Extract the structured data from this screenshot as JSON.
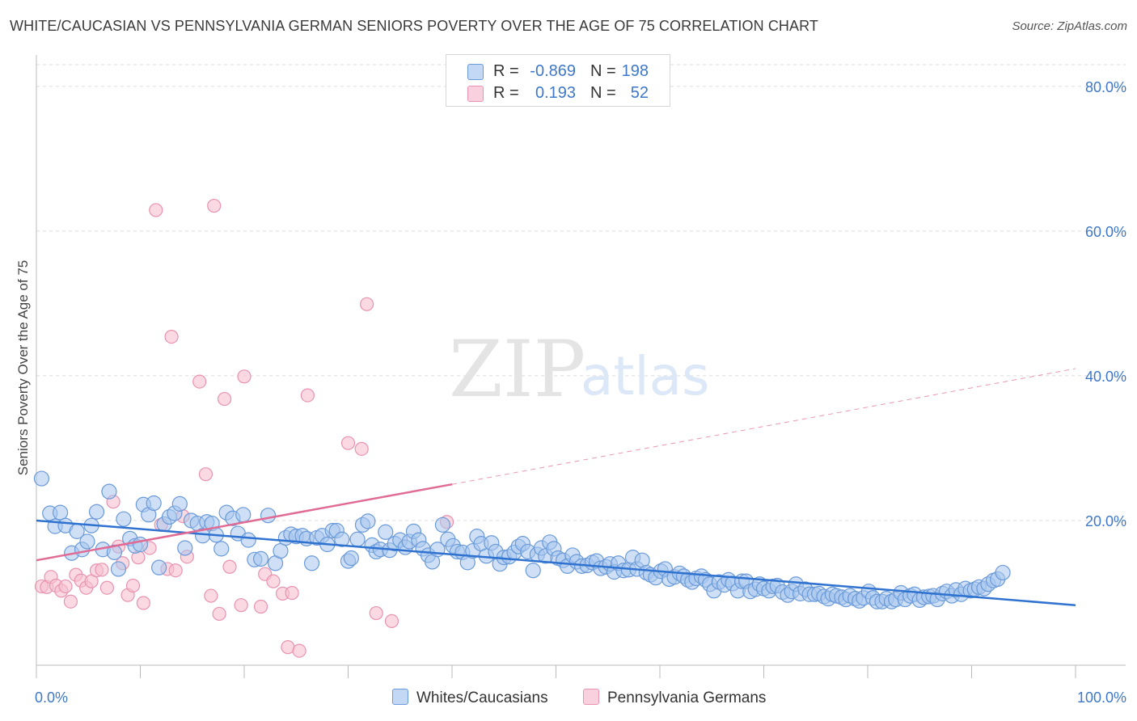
{
  "title": "WHITE/CAUCASIAN VS PENNSYLVANIA GERMAN SENIORS POVERTY OVER THE AGE OF 75 CORRELATION CHART",
  "source": "Source: ZipAtlas.com",
  "watermark": {
    "zip": "ZIP",
    "atlas": "atlas"
  },
  "colors": {
    "blue_fill": "#a8c6ef",
    "blue_stroke": "#6a9ad8",
    "blue_line": "#2f72cf",
    "pink_fill": "#f6bfd0",
    "pink_stroke": "#e893b0",
    "pink_line": "#e06b95",
    "tick_label": "#3f78c8",
    "grid": "#dcdcdc"
  },
  "legend": {
    "rows": [
      {
        "r_label": "R =",
        "r_value": "-0.869",
        "n_label": "N =",
        "n_value": "198"
      },
      {
        "r_label": "R =",
        "r_value": "0.193",
        "n_label": "N =",
        "n_value": "52"
      }
    ]
  },
  "bottom_legend": {
    "blue": "Whites/Caucasians",
    "pink": "Pennsylvania Germans"
  },
  "chart_data": {
    "type": "scatter",
    "title": "WHITE/CAUCASIAN VS PENNSYLVANIA GERMAN SENIORS POVERTY OVER THE AGE OF 75 CORRELATION CHART",
    "xlabel": "",
    "ylabel": "Seniors Poverty Over the Age of 75",
    "xlim": [
      0,
      100
    ],
    "ylim": [
      0,
      83
    ],
    "x_tick_labels": [
      "0.0%",
      "100.0%"
    ],
    "y_ticks": [
      20,
      40,
      60,
      80
    ],
    "y_tick_labels": [
      "20.0%",
      "40.0%",
      "60.0%",
      "80.0%"
    ],
    "grid": true,
    "legend_position": "top-center",
    "series": [
      {
        "name": "Whites/Caucasians",
        "r": -0.869,
        "n": 198,
        "trend": {
          "x": [
            0,
            100
          ],
          "y": [
            20.0,
            8.3
          ]
        },
        "points": [
          [
            0.5,
            25.8
          ],
          [
            1.3,
            21
          ],
          [
            1.8,
            19.2
          ],
          [
            2.3,
            21.1
          ],
          [
            2.8,
            19.3
          ],
          [
            3.4,
            15.5
          ],
          [
            3.9,
            18.5
          ],
          [
            4.4,
            16
          ],
          [
            4.9,
            17.1
          ],
          [
            5.3,
            19.3
          ],
          [
            5.8,
            21.2
          ],
          [
            6.4,
            16
          ],
          [
            7,
            24
          ],
          [
            7.5,
            15.6
          ],
          [
            7.9,
            13.3
          ],
          [
            8.4,
            20.2
          ],
          [
            9,
            17.5
          ],
          [
            9.5,
            16.5
          ],
          [
            10,
            16.7
          ],
          [
            10.3,
            22.2
          ],
          [
            10.8,
            20.8
          ],
          [
            11.3,
            22.4
          ],
          [
            11.8,
            13.5
          ],
          [
            12.3,
            19.5
          ],
          [
            12.8,
            20.5
          ],
          [
            13.3,
            21
          ],
          [
            13.8,
            22.3
          ],
          [
            14.3,
            16.2
          ],
          [
            14.9,
            20
          ],
          [
            15.5,
            19.6
          ],
          [
            16,
            17.9
          ],
          [
            16.4,
            19.8
          ],
          [
            16.9,
            19.6
          ],
          [
            17.3,
            18
          ],
          [
            17.8,
            16.1
          ],
          [
            18.3,
            21.1
          ],
          [
            18.9,
            20.3
          ],
          [
            19.4,
            18.2
          ],
          [
            19.9,
            20.8
          ],
          [
            20.4,
            17.3
          ],
          [
            21,
            14.6
          ],
          [
            21.6,
            14.7
          ],
          [
            22.3,
            20.7
          ],
          [
            23,
            14.1
          ],
          [
            23.5,
            15.8
          ],
          [
            24,
            17.6
          ],
          [
            24.5,
            18.1
          ],
          [
            25,
            17.8
          ],
          [
            25.6,
            17.9
          ],
          [
            26,
            17.5
          ],
          [
            26.5,
            14.1
          ],
          [
            27,
            17.6
          ],
          [
            27.5,
            17.9
          ],
          [
            28,
            16.7
          ],
          [
            28.5,
            18.6
          ],
          [
            28.9,
            18.6
          ],
          [
            29.4,
            17.4
          ],
          [
            30,
            14.4
          ],
          [
            30.3,
            14.8
          ],
          [
            30.9,
            17.4
          ],
          [
            31.4,
            19.4
          ],
          [
            31.9,
            19.9
          ],
          [
            32.3,
            16.6
          ],
          [
            32.7,
            15.7
          ],
          [
            33.1,
            16
          ],
          [
            33.6,
            18.4
          ],
          [
            34,
            15.9
          ],
          [
            34.5,
            16.8
          ],
          [
            35,
            17.3
          ],
          [
            35.5,
            16.3
          ],
          [
            35.9,
            17.1
          ],
          [
            36.3,
            18.5
          ],
          [
            36.8,
            17.3
          ],
          [
            37.2,
            16.1
          ],
          [
            37.7,
            15.2
          ],
          [
            38.1,
            14.3
          ],
          [
            38.6,
            16
          ],
          [
            39.1,
            19.4
          ],
          [
            39.6,
            17.4
          ],
          [
            40.1,
            16.5
          ],
          [
            40.5,
            15.7
          ],
          [
            41,
            15.6
          ],
          [
            41.5,
            14.2
          ],
          [
            42,
            15.8
          ],
          [
            42.4,
            17.8
          ],
          [
            42.8,
            16.8
          ],
          [
            43.3,
            15.1
          ],
          [
            43.8,
            16.9
          ],
          [
            44.2,
            15.7
          ],
          [
            44.6,
            14
          ],
          [
            45,
            14.9
          ],
          [
            45.5,
            15
          ],
          [
            46,
            15.6
          ],
          [
            46.4,
            16.4
          ],
          [
            46.8,
            16.8
          ],
          [
            47.3,
            15.7
          ],
          [
            47.8,
            13.1
          ],
          [
            48.2,
            15.3
          ],
          [
            48.6,
            16.2
          ],
          [
            49,
            15.1
          ],
          [
            49.4,
            17
          ],
          [
            49.8,
            16.1
          ],
          [
            50.2,
            14.8
          ],
          [
            50.7,
            14.5
          ],
          [
            51.1,
            13.7
          ],
          [
            51.6,
            15.2
          ],
          [
            52,
            14.3
          ],
          [
            52.5,
            13.7
          ],
          [
            53,
            13.8
          ],
          [
            53.5,
            14.2
          ],
          [
            53.9,
            14.4
          ],
          [
            54.3,
            13.4
          ],
          [
            54.8,
            13.6
          ],
          [
            55.2,
            14
          ],
          [
            55.6,
            12.9
          ],
          [
            56,
            14.1
          ],
          [
            56.5,
            13.1
          ],
          [
            57,
            13.2
          ],
          [
            57.4,
            14.9
          ],
          [
            57.8,
            13.3
          ],
          [
            58.3,
            14.5
          ],
          [
            58.7,
            12.8
          ],
          [
            59.1,
            12.5
          ],
          [
            59.6,
            12.1
          ],
          [
            60.1,
            13
          ],
          [
            60.5,
            13.3
          ],
          [
            60.9,
            11.9
          ],
          [
            61.4,
            12.2
          ],
          [
            61.9,
            12.7
          ],
          [
            62.3,
            12.3
          ],
          [
            62.7,
            11.8
          ],
          [
            63.1,
            11.5
          ],
          [
            63.5,
            12
          ],
          [
            64,
            12.3
          ],
          [
            64.4,
            11.8
          ],
          [
            64.8,
            11.2
          ],
          [
            65.2,
            10.3
          ],
          [
            65.7,
            11.5
          ],
          [
            66.2,
            11.1
          ],
          [
            66.6,
            11.8
          ],
          [
            67,
            11.3
          ],
          [
            67.5,
            10.3
          ],
          [
            67.9,
            11.6
          ],
          [
            68.3,
            11.6
          ],
          [
            68.7,
            10.2
          ],
          [
            69.2,
            10.5
          ],
          [
            69.6,
            11.2
          ],
          [
            70,
            10.6
          ],
          [
            70.5,
            10.3
          ],
          [
            70.9,
            10.9
          ],
          [
            71.3,
            11
          ],
          [
            71.8,
            10.1
          ],
          [
            72.3,
            9.7
          ],
          [
            72.7,
            10.2
          ],
          [
            73.1,
            11.2
          ],
          [
            73.5,
            9.9
          ],
          [
            74,
            10.5
          ],
          [
            74.4,
            9.8
          ],
          [
            74.9,
            9.8
          ],
          [
            75.3,
            9.9
          ],
          [
            75.8,
            9.5
          ],
          [
            76.2,
            9.2
          ],
          [
            76.6,
            9.8
          ],
          [
            77,
            9.6
          ],
          [
            77.5,
            9.4
          ],
          [
            77.9,
            9.1
          ],
          [
            78.3,
            9.6
          ],
          [
            78.8,
            9.2
          ],
          [
            79.2,
            8.9
          ],
          [
            79.6,
            9.3
          ],
          [
            80.1,
            10.2
          ],
          [
            80.5,
            9.3
          ],
          [
            80.9,
            8.8
          ],
          [
            81.4,
            8.8
          ],
          [
            81.8,
            9.2
          ],
          [
            82.3,
            8.8
          ],
          [
            82.7,
            9.1
          ],
          [
            83.2,
            10
          ],
          [
            83.6,
            9.1
          ],
          [
            84.1,
            9.6
          ],
          [
            84.5,
            9.8
          ],
          [
            85,
            9
          ],
          [
            85.4,
            9.4
          ],
          [
            85.9,
            9.5
          ],
          [
            86.3,
            9.6
          ],
          [
            86.7,
            9.1
          ],
          [
            87.2,
            9.9
          ],
          [
            87.6,
            10.2
          ],
          [
            88.1,
            9.6
          ],
          [
            88.5,
            10.4
          ],
          [
            89,
            9.8
          ],
          [
            89.4,
            10.6
          ],
          [
            89.9,
            10.3
          ],
          [
            90.3,
            10.5
          ],
          [
            90.7,
            10.8
          ],
          [
            91.2,
            10.6
          ],
          [
            91.6,
            11.2
          ],
          [
            92.1,
            11.7
          ],
          [
            92.5,
            11.9
          ],
          [
            93,
            12.8
          ]
        ]
      },
      {
        "name": "Pennsylvania Germans",
        "r": 0.193,
        "n": 52,
        "trend": {
          "x": [
            0,
            40
          ],
          "y": [
            14.5,
            25.0
          ]
        },
        "trend_extension": {
          "x": [
            40,
            100
          ],
          "y": [
            25.0,
            41.0
          ]
        },
        "points": [
          [
            0.5,
            10.9
          ],
          [
            1,
            10.8
          ],
          [
            1.4,
            12.2
          ],
          [
            1.9,
            11
          ],
          [
            2.4,
            10.3
          ],
          [
            2.8,
            10.9
          ],
          [
            3.3,
            8.8
          ],
          [
            3.8,
            12.5
          ],
          [
            4.3,
            11.7
          ],
          [
            4.8,
            10.7
          ],
          [
            5.3,
            11.6
          ],
          [
            5.8,
            13.1
          ],
          [
            6.3,
            13.2
          ],
          [
            6.8,
            10.7
          ],
          [
            7.4,
            22.6
          ],
          [
            7.9,
            16.4
          ],
          [
            8.3,
            14.1
          ],
          [
            8.8,
            9.7
          ],
          [
            9.3,
            11
          ],
          [
            9.8,
            14.9
          ],
          [
            10.3,
            8.6
          ],
          [
            10.9,
            16.2
          ],
          [
            11.5,
            62.9
          ],
          [
            12,
            19.4
          ],
          [
            12.6,
            13.3
          ],
          [
            13,
            45.4
          ],
          [
            13.4,
            13.1
          ],
          [
            14.1,
            20.6
          ],
          [
            14.5,
            15
          ],
          [
            15.7,
            39.2
          ],
          [
            16.3,
            26.4
          ],
          [
            16.8,
            9.6
          ],
          [
            17.1,
            63.5
          ],
          [
            17.6,
            7.1
          ],
          [
            18.1,
            36.8
          ],
          [
            18.6,
            13.6
          ],
          [
            19.7,
            8.3
          ],
          [
            20,
            39.9
          ],
          [
            21.6,
            8.1
          ],
          [
            22,
            12.6
          ],
          [
            22.8,
            11.6
          ],
          [
            23.7,
            9.9
          ],
          [
            24.2,
            2.5
          ],
          [
            24.6,
            10
          ],
          [
            25.3,
            2
          ],
          [
            26.1,
            37.3
          ],
          [
            30,
            30.7
          ],
          [
            31.3,
            29.9
          ],
          [
            31.8,
            49.9
          ],
          [
            32.7,
            7.2
          ],
          [
            34.2,
            6.1
          ],
          [
            39.5,
            19.8
          ]
        ]
      }
    ]
  }
}
